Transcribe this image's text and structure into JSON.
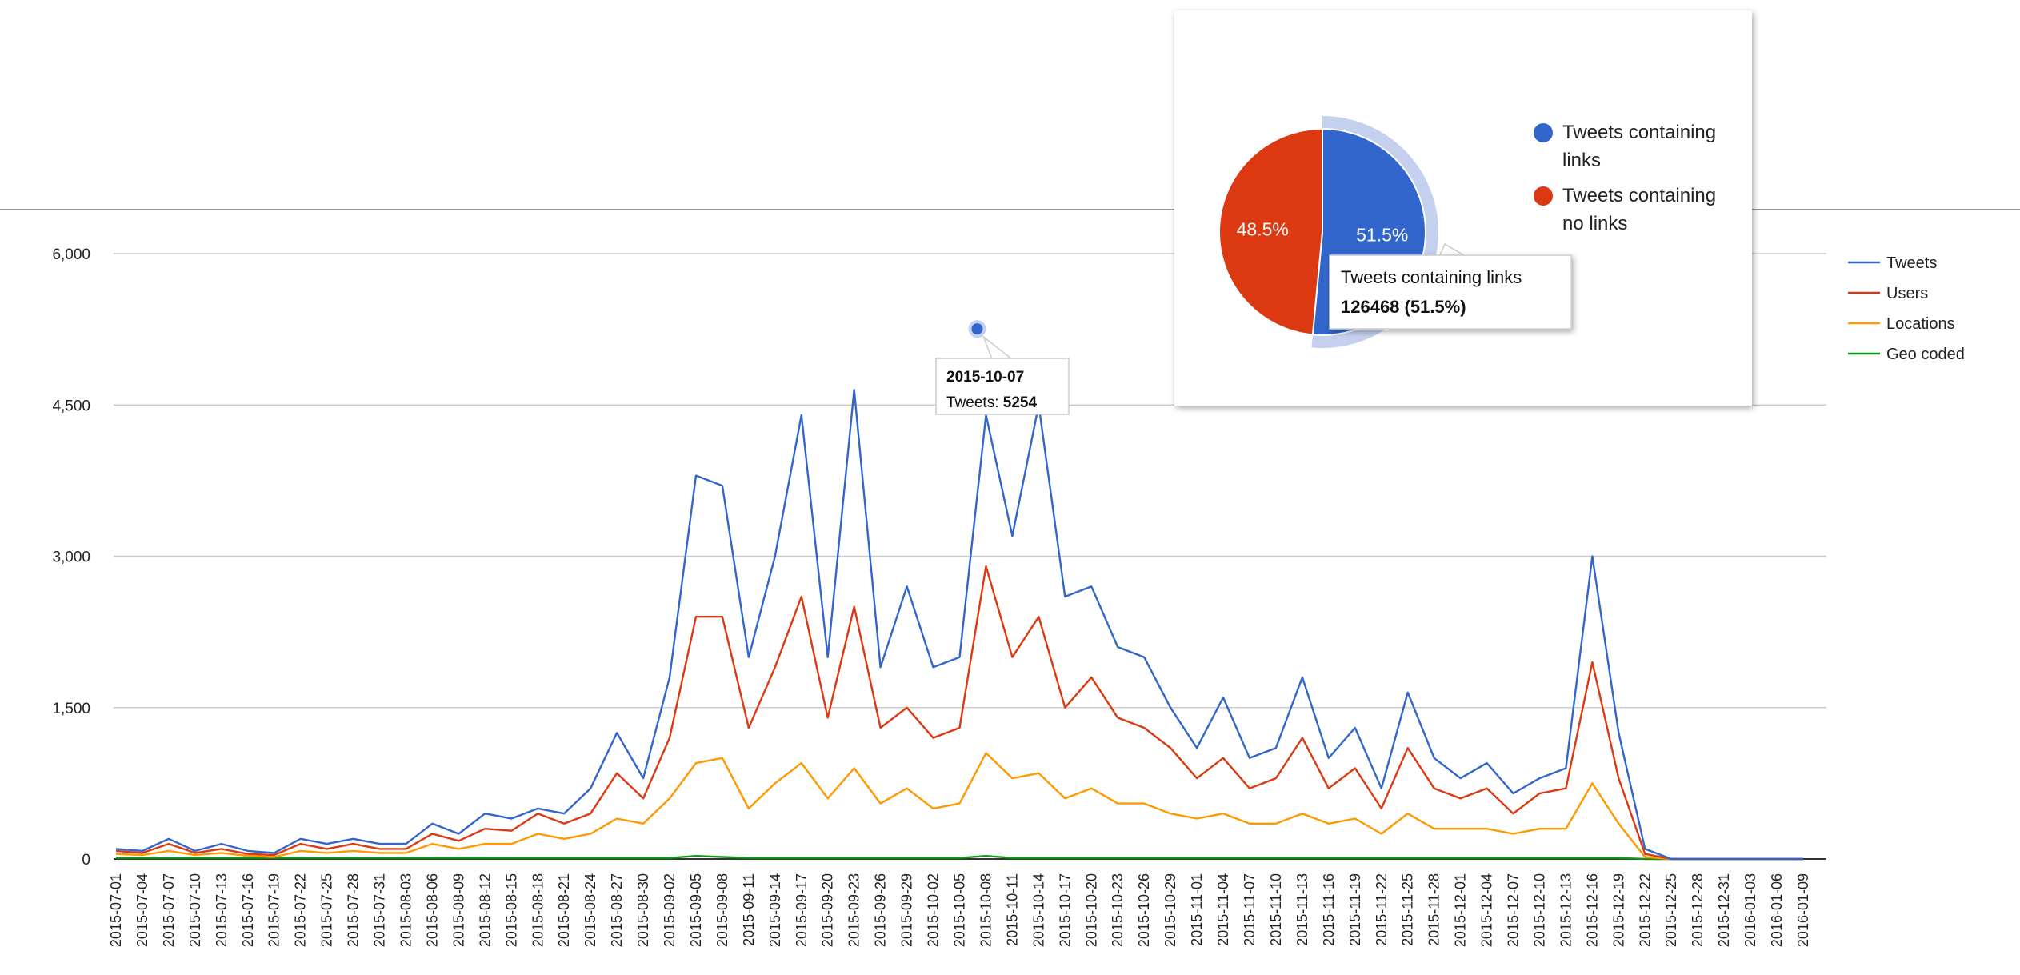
{
  "chart_data": [
    {
      "type": "line",
      "categories": [
        "2015-07-01",
        "2015-07-04",
        "2015-07-07",
        "2015-07-10",
        "2015-07-13",
        "2015-07-16",
        "2015-07-19",
        "2015-07-22",
        "2015-07-25",
        "2015-07-28",
        "2015-07-31",
        "2015-08-03",
        "2015-08-06",
        "2015-08-09",
        "2015-08-12",
        "2015-08-15",
        "2015-08-18",
        "2015-08-21",
        "2015-08-24",
        "2015-08-27",
        "2015-08-30",
        "2015-09-02",
        "2015-09-05",
        "2015-09-08",
        "2015-09-11",
        "2015-09-14",
        "2015-09-17",
        "2015-09-20",
        "2015-09-23",
        "2015-09-26",
        "2015-09-29",
        "2015-10-02",
        "2015-10-05",
        "2015-10-08",
        "2015-10-11",
        "2015-10-14",
        "2015-10-17",
        "2015-10-20",
        "2015-10-23",
        "2015-10-26",
        "2015-10-29",
        "2015-11-01",
        "2015-11-04",
        "2015-11-07",
        "2015-11-10",
        "2015-11-13",
        "2015-11-16",
        "2015-11-19",
        "2015-11-22",
        "2015-11-25",
        "2015-11-28",
        "2015-12-01",
        "2015-12-04",
        "2015-12-07",
        "2015-12-10",
        "2015-12-13",
        "2015-12-16",
        "2015-12-19",
        "2015-12-22",
        "2015-12-25",
        "2015-12-28",
        "2015-12-31",
        "2016-01-03",
        "2016-01-06",
        "2016-01-09"
      ],
      "series": [
        {
          "name": "Tweets",
          "color": "#3366cc",
          "values": [
            100,
            80,
            200,
            80,
            150,
            80,
            60,
            200,
            150,
            200,
            150,
            150,
            350,
            250,
            450,
            400,
            500,
            450,
            700,
            1250,
            800,
            1800,
            3800,
            3700,
            2000,
            3000,
            4400,
            2000,
            4650,
            1900,
            2700,
            1900,
            2000,
            4400,
            3200,
            4500,
            2600,
            2700,
            2100,
            2000,
            1500,
            1100,
            1600,
            1000,
            1100,
            1800,
            1000,
            1300,
            700,
            1650,
            1000,
            800,
            950,
            650,
            800,
            900,
            3000,
            1250,
            100,
            0,
            0,
            0,
            0,
            0,
            0
          ]
        },
        {
          "name": "Users",
          "color": "#dc3912",
          "values": [
            80,
            60,
            150,
            60,
            100,
            50,
            40,
            150,
            100,
            150,
            100,
            100,
            250,
            180,
            300,
            280,
            450,
            350,
            450,
            850,
            600,
            1200,
            2400,
            2400,
            1300,
            1900,
            2600,
            1400,
            2500,
            1300,
            1500,
            1200,
            1300,
            2900,
            2000,
            2400,
            1500,
            1800,
            1400,
            1300,
            1100,
            800,
            1000,
            700,
            800,
            1200,
            700,
            900,
            500,
            1100,
            700,
            600,
            700,
            450,
            650,
            700,
            1950,
            800,
            50,
            0,
            0,
            0,
            0,
            0,
            0
          ]
        },
        {
          "name": "Locations",
          "color": "#ff9900",
          "values": [
            50,
            40,
            80,
            40,
            60,
            30,
            20,
            80,
            60,
            80,
            60,
            60,
            150,
            100,
            150,
            150,
            250,
            200,
            250,
            400,
            350,
            600,
            950,
            1000,
            500,
            750,
            950,
            600,
            900,
            550,
            700,
            500,
            550,
            1050,
            800,
            850,
            600,
            700,
            550,
            550,
            450,
            400,
            450,
            350,
            350,
            450,
            350,
            400,
            250,
            450,
            300,
            300,
            300,
            250,
            300,
            300,
            750,
            350,
            20,
            0,
            0,
            0,
            0,
            0,
            0
          ]
        },
        {
          "name": "Geo coded",
          "color": "#109618",
          "values": [
            10,
            10,
            10,
            10,
            10,
            10,
            10,
            10,
            10,
            10,
            10,
            10,
            10,
            10,
            10,
            10,
            10,
            10,
            10,
            10,
            10,
            10,
            30,
            20,
            10,
            10,
            10,
            10,
            10,
            10,
            10,
            10,
            10,
            30,
            10,
            10,
            10,
            10,
            10,
            10,
            10,
            10,
            10,
            10,
            10,
            10,
            10,
            10,
            10,
            10,
            10,
            10,
            10,
            10,
            10,
            10,
            10,
            10,
            0,
            0,
            0,
            0,
            0,
            0,
            0
          ]
        }
      ],
      "ylim": [
        0,
        6000
      ],
      "yticks": [
        0,
        {
          "value": 1500,
          "label": "1,500"
        },
        {
          "value": 3000,
          "label": "3,000"
        },
        {
          "value": 4500,
          "label": "4,500"
        },
        {
          "value": 6000,
          "label": "6,000"
        }
      ],
      "grid": true,
      "legend": "right",
      "tooltip": {
        "date": "2015-10-07",
        "series": "Tweets:",
        "value": 5254
      }
    },
    {
      "type": "pie",
      "categories": [
        "Tweets containing links",
        "Tweets containing no links"
      ],
      "values": [
        51.5,
        48.5
      ],
      "value_labels": [
        "51.5%",
        "48.5%"
      ],
      "colors": [
        "#3366cc",
        "#dc3912"
      ],
      "tooltip": {
        "title": "Tweets containing links",
        "text": "126468 (51.5%)"
      }
    }
  ]
}
